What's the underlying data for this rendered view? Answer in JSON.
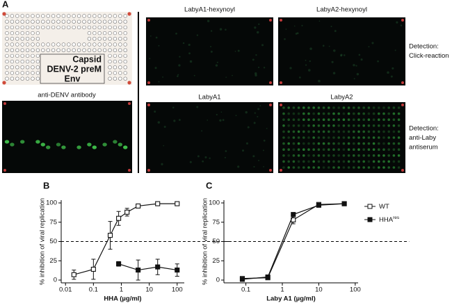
{
  "panel_a": {
    "label": "A",
    "array_labels": [
      "Capsid",
      "DENV-2 preM",
      "Env"
    ],
    "antibody_label": "anti-DENV antibody",
    "images": [
      "LabyA1-hexynoyl",
      "LabyA2-hexynoyl",
      "LabyA1",
      "LabyA2"
    ],
    "detections": [
      [
        "Detection:",
        "Click-reaction"
      ],
      [
        "Detection:",
        "anti-Laby",
        "antiserum"
      ]
    ]
  },
  "chart_data": [
    {
      "type": "line",
      "panel_label": "B",
      "ylabel": "% inhibition of viral replication",
      "xlabel": "HHA (µg/ml)",
      "xscale": "log",
      "xlim": [
        0.007,
        180
      ],
      "xticks": [
        0.01,
        0.1,
        1,
        10,
        100
      ],
      "ylim": [
        0,
        100
      ],
      "yticks": [
        0,
        25,
        50,
        75,
        100
      ],
      "hline": 50,
      "series": [
        {
          "color": "#111111",
          "marker": "open",
          "x": [
            0.02,
            0.1,
            0.4,
            0.8,
            1.6,
            4,
            20,
            100
          ],
          "values": [
            7,
            14,
            58,
            80,
            88,
            96,
            99,
            99
          ],
          "errors": [
            6,
            13,
            18,
            9,
            5,
            2,
            1,
            1
          ]
        },
        {
          "color": "#111111",
          "marker": "filled",
          "x": [
            0.8,
            4,
            20,
            100
          ],
          "values": [
            21,
            13,
            17,
            13
          ],
          "errors": [
            3,
            13,
            10,
            8
          ]
        }
      ]
    },
    {
      "type": "line",
      "panel_label": "C",
      "ylabel": "% inhibition of viral replication",
      "xlabel": "Laby A1 (µg/ml)",
      "xscale": "log",
      "xlim": [
        0.025,
        120
      ],
      "xticks": [
        0.1,
        1,
        10,
        100
      ],
      "ylim": [
        0,
        100
      ],
      "yticks": [
        0,
        25,
        50,
        75,
        100
      ],
      "hline": 50,
      "series": [
        {
          "name": "WT",
          "color": "#111111",
          "marker": "open",
          "x": [
            0.08,
            0.4,
            2,
            10,
            50
          ],
          "values": [
            2,
            3,
            78,
            98,
            99
          ],
          "errors": [
            2,
            2,
            5,
            1,
            1
          ]
        },
        {
          "name": "HHA",
          "name_sup": "res",
          "color": "#111111",
          "marker": "filled",
          "x": [
            0.08,
            0.4,
            2,
            10,
            50
          ],
          "values": [
            1,
            4,
            85,
            97,
            99
          ],
          "errors": [
            1,
            1,
            2,
            1,
            1
          ]
        }
      ]
    }
  ]
}
